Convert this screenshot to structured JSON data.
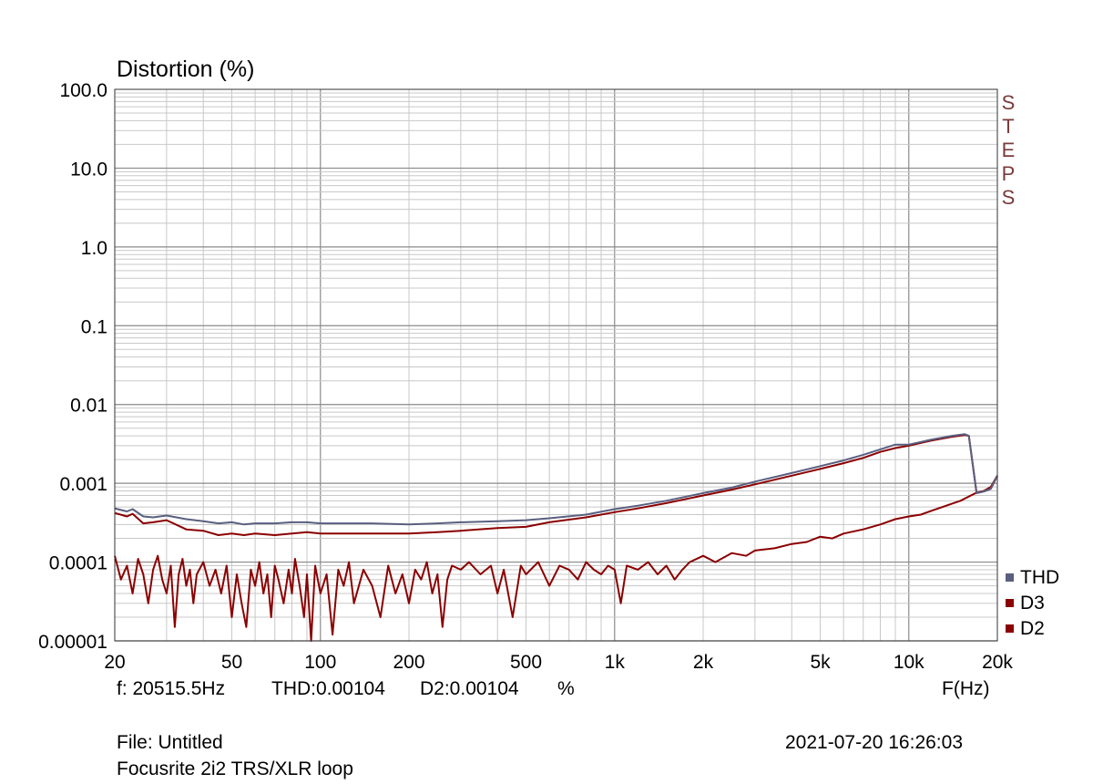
{
  "chart_data": {
    "type": "line",
    "title": "Distortion (%)",
    "xlabel": "F(Hz)",
    "ylabel": "Distortion (%)",
    "xscale": "log",
    "yscale": "log",
    "xlim": [
      20,
      20000
    ],
    "ylim": [
      1e-05,
      100
    ],
    "grid": true,
    "legend_position": "bottom-right",
    "x_tick_labels": [
      {
        "value": 20,
        "label": "20"
      },
      {
        "value": 50,
        "label": "50"
      },
      {
        "value": 100,
        "label": "100"
      },
      {
        "value": 200,
        "label": "200"
      },
      {
        "value": 500,
        "label": "500"
      },
      {
        "value": 1000,
        "label": "1k"
      },
      {
        "value": 2000,
        "label": "2k"
      },
      {
        "value": 5000,
        "label": "5k"
      },
      {
        "value": 10000,
        "label": "10k"
      },
      {
        "value": 20000,
        "label": "20k"
      }
    ],
    "y_tick_labels": [
      {
        "value": 100,
        "label": "100.0"
      },
      {
        "value": 10,
        "label": "10.0"
      },
      {
        "value": 1,
        "label": "1.0"
      },
      {
        "value": 0.1,
        "label": "0.1"
      },
      {
        "value": 0.01,
        "label": "0.01"
      },
      {
        "value": 0.001,
        "label": "0.001"
      },
      {
        "value": 0.0001,
        "label": "0.0001"
      },
      {
        "value": 1e-05,
        "label": "0.00001"
      }
    ],
    "series": [
      {
        "name": "THD",
        "color": "#5a5f80",
        "points": [
          [
            20,
            0.00048
          ],
          [
            22,
            0.00044
          ],
          [
            23,
            0.00047
          ],
          [
            25,
            0.00038
          ],
          [
            27,
            0.00037
          ],
          [
            30,
            0.00039
          ],
          [
            35,
            0.00035
          ],
          [
            40,
            0.00033
          ],
          [
            45,
            0.00031
          ],
          [
            50,
            0.00032
          ],
          [
            55,
            0.0003
          ],
          [
            60,
            0.00031
          ],
          [
            70,
            0.00031
          ],
          [
            80,
            0.00032
          ],
          [
            90,
            0.00032
          ],
          [
            100,
            0.00031
          ],
          [
            120,
            0.00031
          ],
          [
            150,
            0.00031
          ],
          [
            200,
            0.0003
          ],
          [
            250,
            0.00031
          ],
          [
            300,
            0.00032
          ],
          [
            400,
            0.00033
          ],
          [
            500,
            0.00034
          ],
          [
            600,
            0.00036
          ],
          [
            800,
            0.0004
          ],
          [
            1000,
            0.00047
          ],
          [
            1200,
            0.00052
          ],
          [
            1500,
            0.0006
          ],
          [
            2000,
            0.00075
          ],
          [
            2500,
            0.00088
          ],
          [
            3000,
            0.00105
          ],
          [
            4000,
            0.00135
          ],
          [
            5000,
            0.00165
          ],
          [
            6000,
            0.00195
          ],
          [
            7000,
            0.0023
          ],
          [
            8000,
            0.0027
          ],
          [
            9000,
            0.0031
          ],
          [
            10000,
            0.0031
          ],
          [
            12000,
            0.0036
          ],
          [
            14000,
            0.004
          ],
          [
            15500,
            0.0042
          ],
          [
            16000,
            0.004
          ],
          [
            17000,
            0.00075
          ],
          [
            18000,
            0.00079
          ],
          [
            19000,
            0.00085
          ],
          [
            20000,
            0.00125
          ]
        ]
      },
      {
        "name": "D3",
        "color": "#8b0000",
        "points": [
          [
            20,
            0.00042
          ],
          [
            22,
            0.00038
          ],
          [
            23,
            0.00041
          ],
          [
            25,
            0.00031
          ],
          [
            27,
            0.00032
          ],
          [
            30,
            0.00034
          ],
          [
            35,
            0.00026
          ],
          [
            40,
            0.00025
          ],
          [
            45,
            0.00022
          ],
          [
            50,
            0.00023
          ],
          [
            55,
            0.00022
          ],
          [
            60,
            0.00023
          ],
          [
            70,
            0.00022
          ],
          [
            80,
            0.00023
          ],
          [
            90,
            0.00024
          ],
          [
            100,
            0.00023
          ],
          [
            120,
            0.00023
          ],
          [
            150,
            0.00023
          ],
          [
            200,
            0.00023
          ],
          [
            250,
            0.00024
          ],
          [
            300,
            0.00025
          ],
          [
            400,
            0.00027
          ],
          [
            500,
            0.00028
          ],
          [
            600,
            0.00032
          ],
          [
            800,
            0.00037
          ],
          [
            1000,
            0.00043
          ],
          [
            1200,
            0.00048
          ],
          [
            1500,
            0.00056
          ],
          [
            2000,
            0.0007
          ],
          [
            2500,
            0.00083
          ],
          [
            3000,
            0.00097
          ],
          [
            4000,
            0.00125
          ],
          [
            5000,
            0.00152
          ],
          [
            6000,
            0.0018
          ],
          [
            7000,
            0.0021
          ],
          [
            8000,
            0.0025
          ],
          [
            9000,
            0.0028
          ],
          [
            10000,
            0.003
          ],
          [
            12000,
            0.0035
          ],
          [
            14000,
            0.0039
          ],
          [
            15500,
            0.0041
          ],
          [
            16000,
            0.004
          ],
          [
            17000,
            0.00075
          ],
          [
            18000,
            0.00079
          ],
          [
            19000,
            0.00085
          ],
          [
            20000,
            0.00125
          ]
        ]
      },
      {
        "name": "D2",
        "color": "#8b0000",
        "points": [
          [
            20,
            0.00012
          ],
          [
            21,
            6e-05
          ],
          [
            22,
            9e-05
          ],
          [
            23,
            4e-05
          ],
          [
            24,
            0.00011
          ],
          [
            25,
            7e-05
          ],
          [
            26,
            3e-05
          ],
          [
            27,
            8e-05
          ],
          [
            28,
            0.00012
          ],
          [
            29,
            6e-05
          ],
          [
            30,
            4e-05
          ],
          [
            31,
            9e-05
          ],
          [
            32,
            1.5e-05
          ],
          [
            33,
            7e-05
          ],
          [
            34,
            0.00011
          ],
          [
            35,
            5e-05
          ],
          [
            36,
            8e-05
          ],
          [
            37,
            3e-05
          ],
          [
            38,
            7e-05
          ],
          [
            40,
            0.0001
          ],
          [
            42,
            5e-05
          ],
          [
            44,
            8e-05
          ],
          [
            46,
            4e-05
          ],
          [
            48,
            9e-05
          ],
          [
            50,
            2e-05
          ],
          [
            52,
            7e-05
          ],
          [
            54,
            3e-05
          ],
          [
            56,
            1.5e-05
          ],
          [
            58,
            8e-05
          ],
          [
            60,
            5e-05
          ],
          [
            62,
            0.0001
          ],
          [
            64,
            4e-05
          ],
          [
            66,
            7e-05
          ],
          [
            68,
            2e-05
          ],
          [
            70,
            9e-05
          ],
          [
            72,
            6e-05
          ],
          [
            75,
            3e-05
          ],
          [
            78,
            8e-05
          ],
          [
            80,
            4e-05
          ],
          [
            82,
            0.00011
          ],
          [
            85,
            5e-05
          ],
          [
            88,
            2e-05
          ],
          [
            90,
            7e-05
          ],
          [
            93,
            1e-05
          ],
          [
            96,
            9e-05
          ],
          [
            100,
            4e-05
          ],
          [
            105,
            7e-05
          ],
          [
            110,
            1.2e-05
          ],
          [
            115,
            8e-05
          ],
          [
            120,
            5e-05
          ],
          [
            125,
            0.0001
          ],
          [
            130,
            3e-05
          ],
          [
            140,
            8e-05
          ],
          [
            150,
            5e-05
          ],
          [
            160,
            2e-05
          ],
          [
            170,
            9e-05
          ],
          [
            180,
            4e-05
          ],
          [
            190,
            7e-05
          ],
          [
            200,
            3e-05
          ],
          [
            210,
            8e-05
          ],
          [
            220,
            6e-05
          ],
          [
            230,
            0.0001
          ],
          [
            240,
            4e-05
          ],
          [
            250,
            7e-05
          ],
          [
            260,
            1.5e-05
          ],
          [
            270,
            6e-05
          ],
          [
            280,
            9e-05
          ],
          [
            300,
            8e-05
          ],
          [
            320,
            0.0001
          ],
          [
            350,
            7e-05
          ],
          [
            380,
            9e-05
          ],
          [
            400,
            4e-05
          ],
          [
            420,
            8e-05
          ],
          [
            450,
            2e-05
          ],
          [
            480,
            9e-05
          ],
          [
            500,
            7e-05
          ],
          [
            550,
            0.0001
          ],
          [
            600,
            5e-05
          ],
          [
            650,
            9e-05
          ],
          [
            700,
            8e-05
          ],
          [
            750,
            6e-05
          ],
          [
            800,
            0.0001
          ],
          [
            850,
            8e-05
          ],
          [
            900,
            7e-05
          ],
          [
            950,
            9e-05
          ],
          [
            1000,
            8e-05
          ],
          [
            1050,
            3e-05
          ],
          [
            1100,
            9e-05
          ],
          [
            1200,
            8e-05
          ],
          [
            1300,
            0.0001
          ],
          [
            1400,
            7e-05
          ],
          [
            1500,
            9e-05
          ],
          [
            1600,
            6e-05
          ],
          [
            1700,
            8e-05
          ],
          [
            1800,
            0.0001
          ],
          [
            2000,
            0.00012
          ],
          [
            2200,
            0.0001
          ],
          [
            2500,
            0.00013
          ],
          [
            2800,
            0.00012
          ],
          [
            3000,
            0.00014
          ],
          [
            3500,
            0.00015
          ],
          [
            4000,
            0.00017
          ],
          [
            4500,
            0.00018
          ],
          [
            5000,
            0.00021
          ],
          [
            5500,
            0.0002
          ],
          [
            6000,
            0.00023
          ],
          [
            7000,
            0.00026
          ],
          [
            8000,
            0.0003
          ],
          [
            9000,
            0.00035
          ],
          [
            10000,
            0.00038
          ],
          [
            11000,
            0.0004
          ],
          [
            12000,
            0.00045
          ],
          [
            13000,
            0.0005
          ],
          [
            14000,
            0.00055
          ],
          [
            15000,
            0.0006
          ],
          [
            16000,
            0.00068
          ],
          [
            17000,
            0.00076
          ],
          [
            18000,
            0.0008
          ],
          [
            19000,
            0.0009
          ],
          [
            20000,
            0.00125
          ]
        ]
      }
    ]
  },
  "readout": {
    "freq": "f: 20515.5Hz",
    "thd": "THD:0.00104",
    "d2": "D2:0.00104",
    "unit": "%"
  },
  "footer": {
    "file": "File: Untitled",
    "description": "Focusrite 2i2 TRS/XLR loop",
    "timestamp": "2021-07-20 16:26:03"
  },
  "side_label": [
    "S",
    "T",
    "E",
    "P",
    "S"
  ],
  "legend": [
    {
      "label": "THD",
      "color": "#5a5f80"
    },
    {
      "label": "D3",
      "color": "#8b0000"
    },
    {
      "label": "D2",
      "color": "#8b0000"
    }
  ]
}
